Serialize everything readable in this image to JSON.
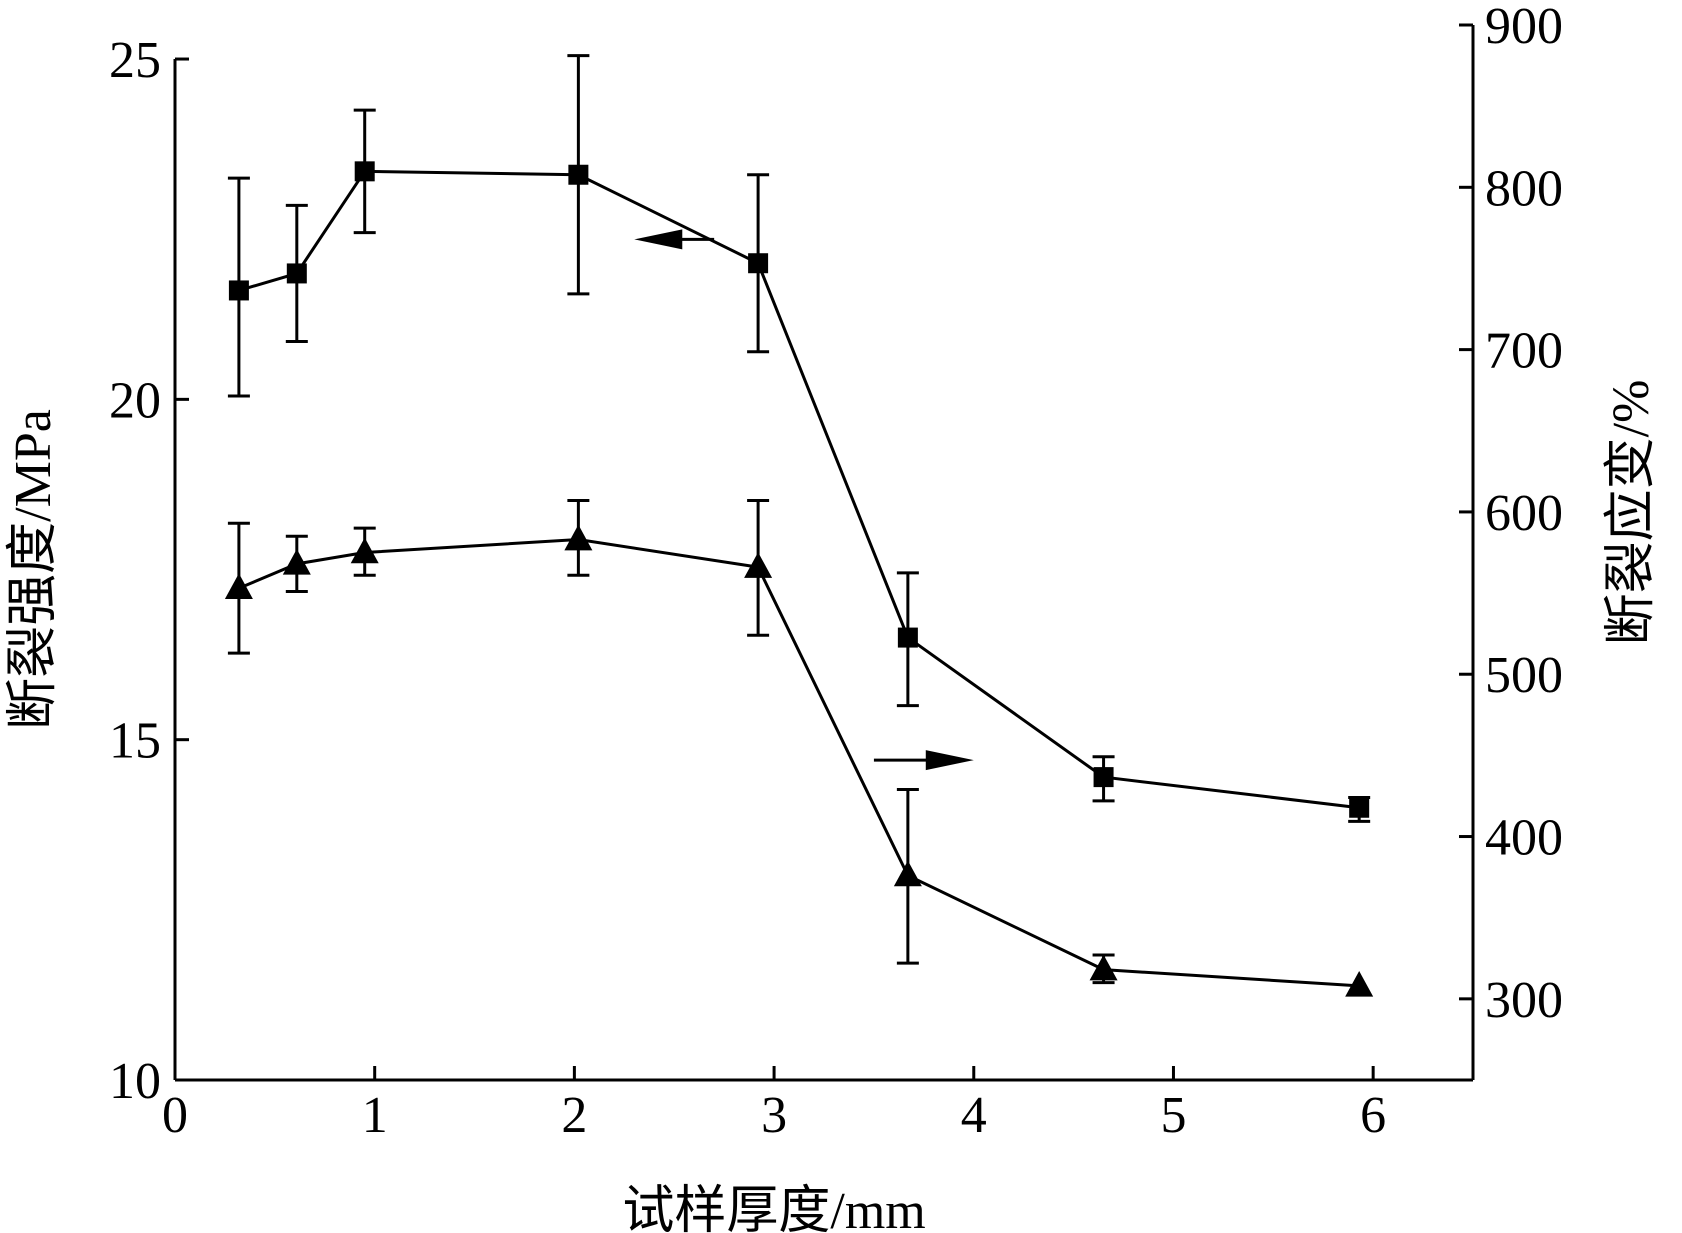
{
  "chart_data": {
    "type": "line",
    "xlabel": "试样厚度/mm",
    "ylabel_left": "断裂强度/MPa",
    "ylabel_right": "断裂应变/%",
    "xlim": [
      0,
      6.5
    ],
    "ylim_left": [
      10,
      25.5
    ],
    "ylim_right": [
      250,
      900
    ],
    "xticks": [
      0,
      1,
      2,
      3,
      4,
      5,
      6
    ],
    "yticks_left": [
      10,
      15,
      20,
      25
    ],
    "yticks_right": [
      300,
      400,
      500,
      600,
      700,
      800,
      900
    ],
    "grid": false,
    "legend": "none (arrows indicate axis)",
    "series": [
      {
        "marker": "square",
        "axis": "left",
        "x": [
          0.32,
          0.61,
          0.95,
          2.02,
          2.92,
          3.67,
          4.65,
          5.93
        ],
        "y": [
          21.6,
          21.85,
          23.35,
          23.3,
          22.0,
          16.5,
          14.45,
          14.0
        ],
        "yerr_high": [
          23.25,
          22.85,
          24.25,
          25.05,
          23.3,
          17.45,
          14.75,
          14.15
        ],
        "yerr_low": [
          20.05,
          20.85,
          22.45,
          21.55,
          20.7,
          15.5,
          14.1,
          13.8
        ]
      },
      {
        "marker": "triangle",
        "axis": "right",
        "x": [
          0.32,
          0.61,
          0.95,
          2.02,
          2.92,
          3.67,
          4.65,
          5.93
        ],
        "y": [
          553,
          568,
          575,
          583,
          566,
          376,
          318,
          308
        ],
        "yerr_high": [
          593,
          585,
          590,
          607,
          607,
          429,
          327,
          308
        ],
        "yerr_low": [
          513,
          551,
          561,
          561,
          524,
          322,
          310,
          308
        ]
      }
    ],
    "annotations": [
      {
        "type": "arrow",
        "direction": "left",
        "points_to": "left-axis",
        "x": [
          2.3,
          2.7
        ],
        "y_left": 22.35
      },
      {
        "type": "arrow",
        "direction": "right",
        "points_to": "right-axis",
        "x": [
          3.5,
          4.0
        ],
        "y_left": 14.7
      }
    ]
  }
}
